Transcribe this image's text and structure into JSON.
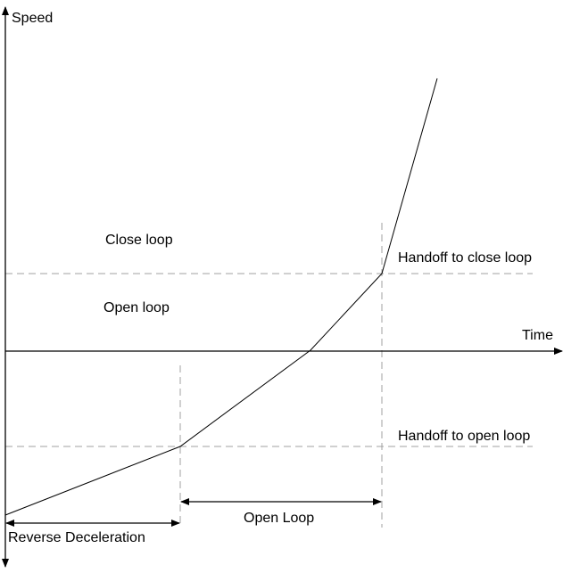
{
  "axes": {
    "y_label": "Speed",
    "x_label": "Time"
  },
  "regions": {
    "close_loop": "Close loop",
    "open_loop": "Open loop"
  },
  "thresholds": {
    "handoff_close": "Handoff to close loop",
    "handoff_open": "Handoff to open loop"
  },
  "intervals": {
    "reverse_deceleration": "Reverse Deceleration",
    "open_loop": "Open Loop"
  },
  "colors": {
    "line": "#000000",
    "dashed": "#a0a0a0"
  }
}
